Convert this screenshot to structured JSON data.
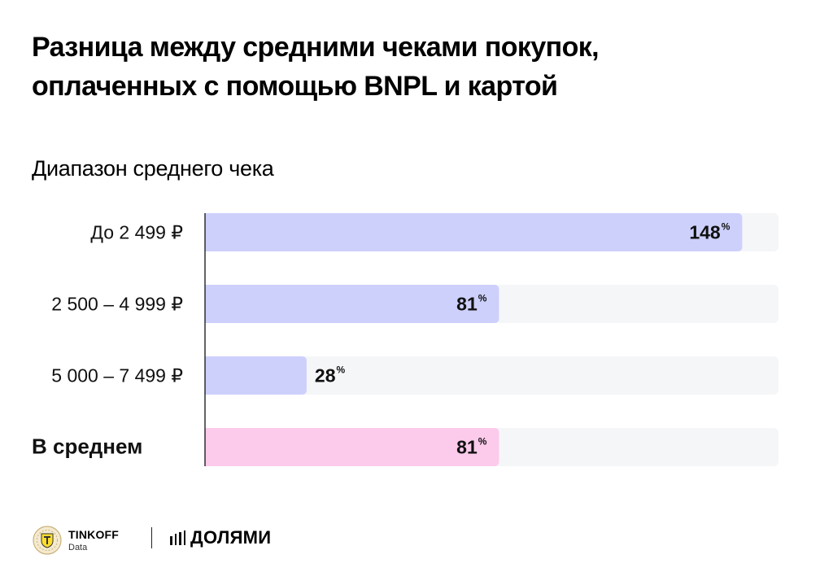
{
  "header": {
    "title_line1": "Разница между средними чеками покупок,",
    "title_line2": "оплаченных с помощью BNPL и картой"
  },
  "chart_data": {
    "type": "bar",
    "orientation": "horizontal",
    "title": "Разница между средними чеками покупок, оплаченных с помощью BNPL и картой",
    "ylabel": "Диапазон среднего чека",
    "unit": "%",
    "xlim": [
      0,
      158
    ],
    "grid": false,
    "categories": [
      "До 2 499 ₽",
      "2 500 – 4 999 ₽",
      "5 000 – 7 499 ₽",
      "В среднем"
    ],
    "values": [
      148,
      81,
      28,
      81
    ],
    "colors": [
      "#cdd0fb",
      "#cdd0fb",
      "#cdd0fb",
      "#fccaeb"
    ],
    "track_color": "#f5f6f8"
  },
  "footer": {
    "brand": "TINKOFF",
    "brand_sub": "Data",
    "partner": "ДОЛЯМИ",
    "partner_icon": "four-bars-icon",
    "brand_icon": "tinkoff-shield-icon"
  }
}
